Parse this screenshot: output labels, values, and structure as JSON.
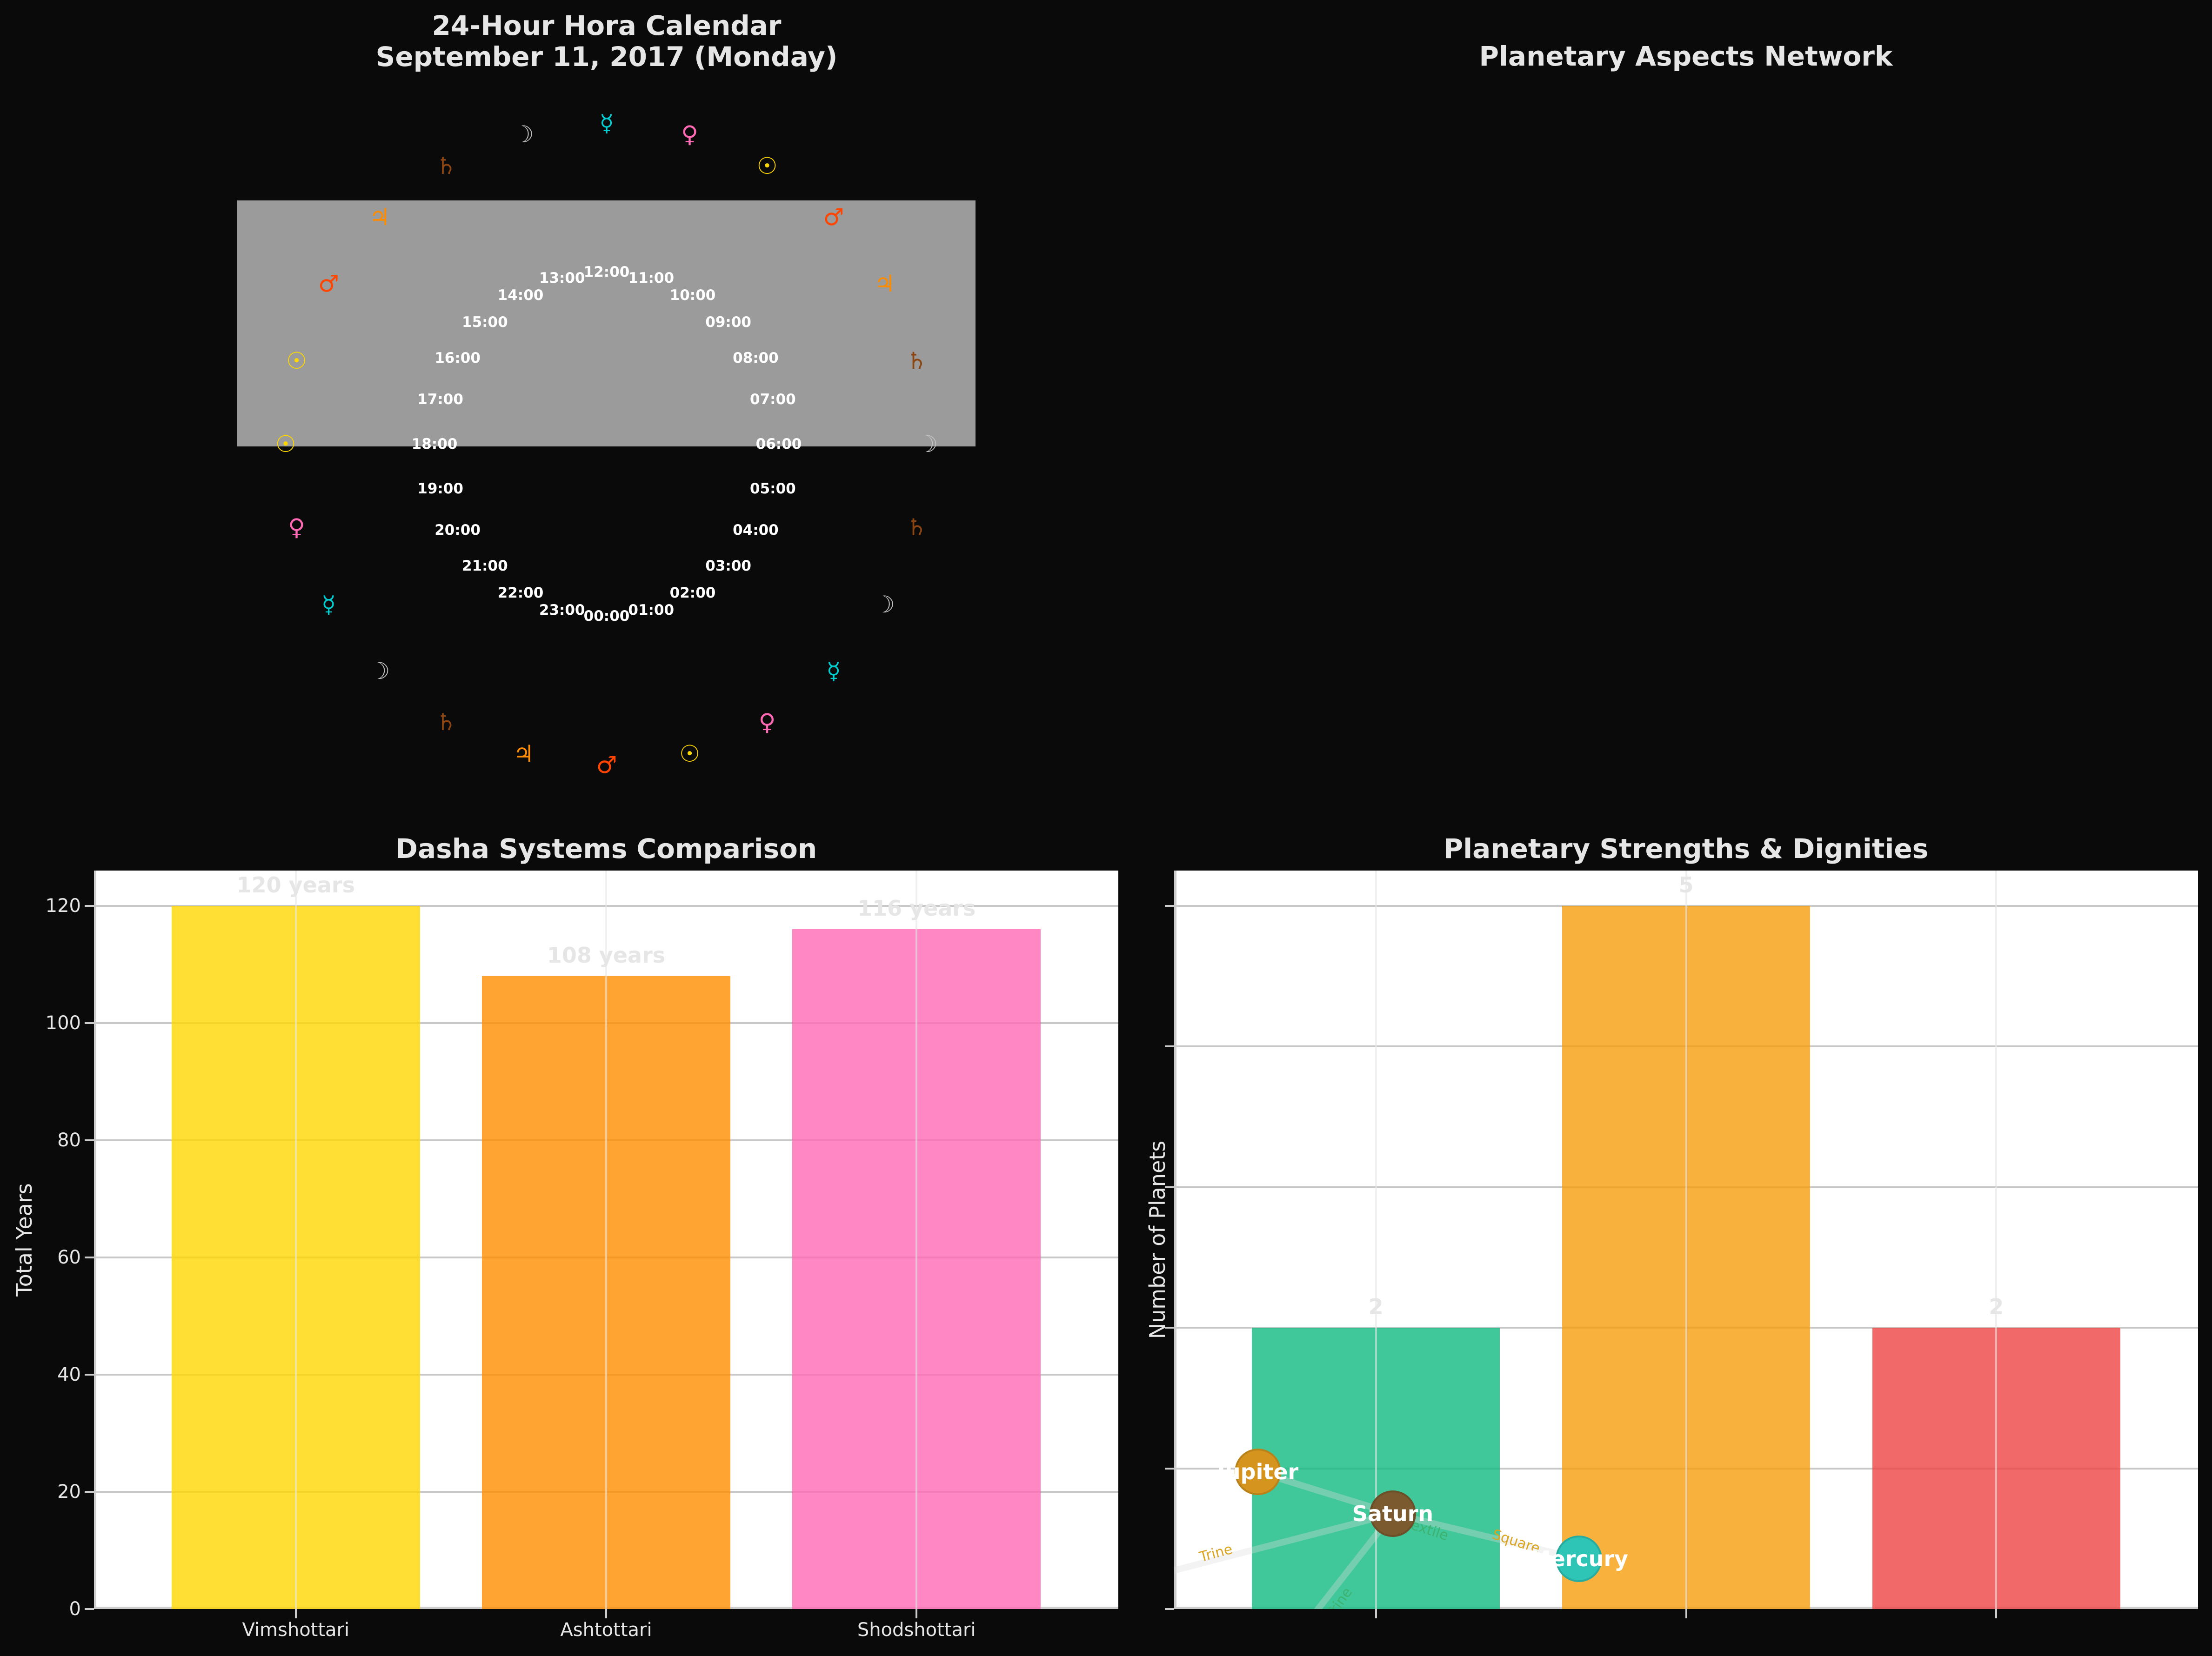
{
  "hora_calendar": {
    "title_line1": "24-Hour Hora Calendar",
    "title_line2": "September 11, 2017 (Monday)",
    "hours": [
      "00:00",
      "01:00",
      "02:00",
      "03:00",
      "04:00",
      "05:00",
      "06:00",
      "07:00",
      "08:00",
      "09:00",
      "10:00",
      "11:00",
      "12:00",
      "13:00",
      "14:00",
      "15:00",
      "16:00",
      "17:00",
      "18:00",
      "19:00",
      "20:00",
      "21:00",
      "22:00",
      "23:00"
    ],
    "outer_ring_clockwise_from_top": [
      {
        "planet": "Mercury",
        "symbol": "☿",
        "color": "#00CED1"
      },
      {
        "planet": "Venus",
        "symbol": "♀",
        "color": "#FF69B4"
      },
      {
        "planet": "Sun",
        "symbol": "☉",
        "color": "#FFD700"
      },
      {
        "planet": "Mars",
        "symbol": "♂",
        "color": "#FF4500"
      },
      {
        "planet": "Jupiter",
        "symbol": "♃",
        "color": "#FF8C00"
      },
      {
        "planet": "Saturn",
        "symbol": "♄",
        "color": "#8B4513"
      },
      {
        "planet": "Moon",
        "symbol": "☽",
        "color": "#C0C0C0"
      },
      {
        "planet": "Saturn",
        "symbol": "♄",
        "color": "#8B4513"
      },
      {
        "planet": "Moon",
        "symbol": "☽",
        "color": "#C0C0C0"
      },
      {
        "planet": "Mercury",
        "symbol": "☿",
        "color": "#00CED1"
      },
      {
        "planet": "Venus",
        "symbol": "♀",
        "color": "#FF69B4"
      },
      {
        "planet": "Sun",
        "symbol": "☉",
        "color": "#FFD700"
      },
      {
        "planet": "Mars",
        "symbol": "♂",
        "color": "#FF4500"
      },
      {
        "planet": "Jupiter",
        "symbol": "♃",
        "color": "#FF8C00"
      },
      {
        "planet": "Saturn",
        "symbol": "♄",
        "color": "#8B4513"
      },
      {
        "planet": "Moon",
        "symbol": "☽",
        "color": "#C0C0C0"
      },
      {
        "planet": "Mercury",
        "symbol": "☿",
        "color": "#00CED1"
      },
      {
        "planet": "Venus",
        "symbol": "♀",
        "color": "#FF69B4"
      },
      {
        "planet": "Sun",
        "symbol": "☉",
        "color": "#FFD700"
      },
      {
        "planet": "Sun",
        "symbol": "☉",
        "color": "#FFD700"
      },
      {
        "planet": "Mars",
        "symbol": "♂",
        "color": "#FF4500"
      },
      {
        "planet": "Jupiter",
        "symbol": "♃",
        "color": "#FF8C00"
      },
      {
        "planet": "Saturn",
        "symbol": "♄",
        "color": "#8B4513"
      },
      {
        "planet": "Moon",
        "symbol": "☽",
        "color": "#C0C0C0"
      }
    ],
    "day_band_color": "#9b9b9b"
  },
  "aspects_network": {
    "title": "Planetary Aspects Network"
  },
  "chart_data": [
    {
      "type": "bar",
      "title": "Dasha Systems Comparison",
      "xlabel": "",
      "ylabel": "Total Years",
      "categories": [
        "Vimshottari",
        "Ashtottari",
        "Shodshottari"
      ],
      "values": [
        120,
        108,
        116
      ],
      "value_labels": [
        "120 years",
        "108 years",
        "116 years"
      ],
      "colors": [
        "#FFD700",
        "#FF8C00",
        "#FF69B4"
      ],
      "ylim": [
        0,
        126
      ],
      "yticks": [
        0,
        20,
        40,
        60,
        80,
        100,
        120
      ],
      "grid": true
    },
    {
      "type": "bar",
      "title": "Planetary Strengths & Dignities",
      "xlabel": "",
      "ylabel": "Number of Planets",
      "categories": [
        "",
        "",
        ""
      ],
      "values": [
        2,
        5,
        2
      ],
      "value_labels": [
        "2",
        "5",
        "2"
      ],
      "colors": [
        "#10B981",
        "#F59E0B",
        "#EF4444"
      ],
      "ylim": [
        0,
        5.25
      ],
      "yticks": [
        0,
        1,
        2,
        3,
        4,
        5
      ],
      "grid": true,
      "overlay_network": {
        "nodes": [
          {
            "name": "Jupiter",
            "color": "#D4941E"
          },
          {
            "name": "Saturn",
            "color": "#7A5A2E"
          },
          {
            "name": "Mercury",
            "color": "#2EC4B6"
          }
        ],
        "edges": [
          {
            "label": "Trine",
            "color": "#DAA520"
          },
          {
            "label": "Trine",
            "color": "#3CB371"
          },
          {
            "label": "Sextile",
            "color": "#3CB371"
          },
          {
            "label": "Square",
            "color": "#DAA520"
          }
        ]
      }
    }
  ]
}
